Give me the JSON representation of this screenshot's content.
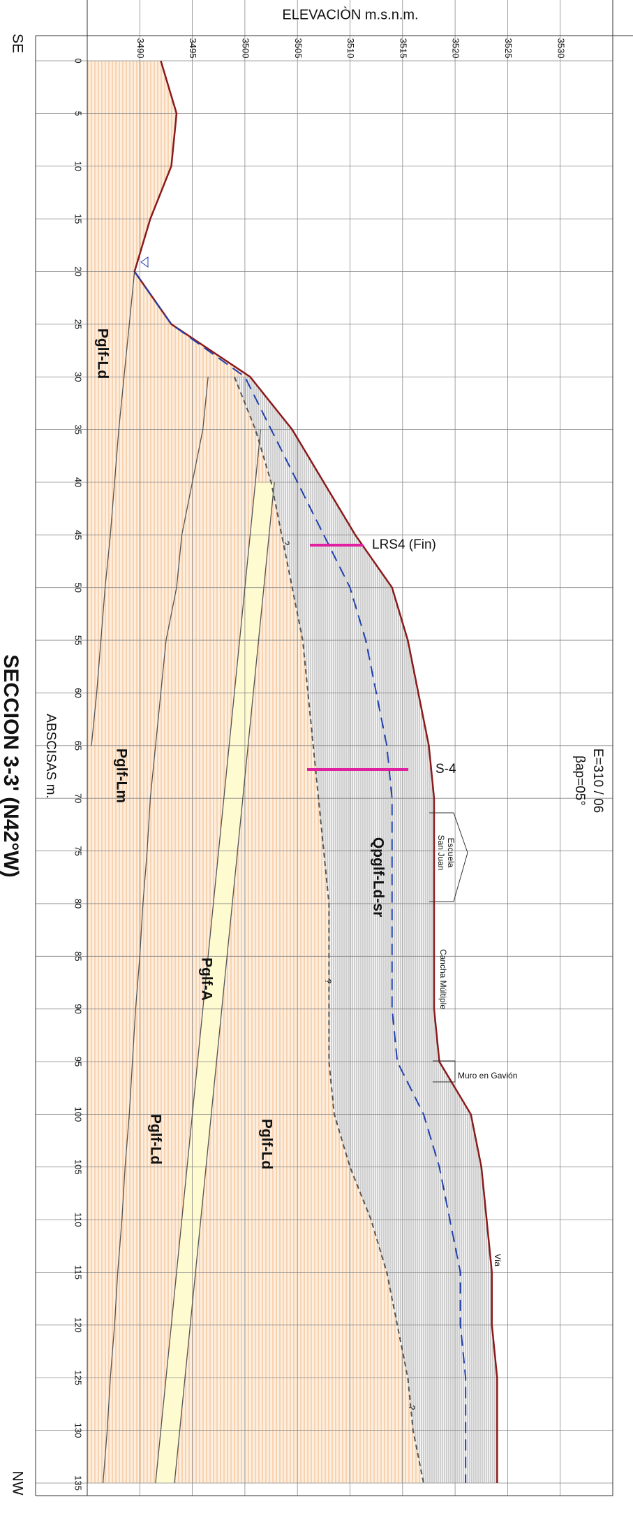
{
  "chart_data": {
    "type": "line",
    "title": "SECCION 3-3' (N42°W)",
    "x_label": "ABSCISAS m.",
    "y_label": "ELEVACIÒN m.s.n.m.",
    "x": [
      0,
      5,
      10,
      15,
      20,
      25,
      30,
      35,
      40,
      45,
      50,
      55,
      60,
      65,
      70,
      75,
      80,
      85,
      90,
      95,
      100,
      105,
      110,
      115,
      120,
      125,
      130,
      135
    ],
    "xlim": [
      0,
      135
    ],
    "xticks": [
      0,
      5,
      10,
      15,
      20,
      25,
      30,
      35,
      40,
      45,
      50,
      55,
      60,
      65,
      70,
      75,
      80,
      85,
      90,
      95,
      100,
      105,
      110,
      115,
      120,
      125,
      130,
      135
    ],
    "ylim": [
      3485,
      3535
    ],
    "yticks": [
      3490,
      3495,
      3500,
      3505,
      3510,
      3515,
      3520,
      3525,
      3530
    ],
    "grid": true,
    "series": [
      {
        "color": "#8b1a1a",
        "dashed": false,
        "values": [
          3492,
          3493.5,
          3493,
          3491,
          3489.5,
          3493,
          3500.5,
          3504.5,
          3507.5,
          3510.5,
          3514,
          3515.5,
          3516.5,
          3517.5,
          3518,
          3518,
          3518,
          3518,
          3518,
          3518.5,
          3521.5,
          3522.5,
          3523,
          3523.5,
          3523.5,
          3524,
          3524,
          3524
        ]
      },
      {
        "color": "#1f3fb0",
        "dashed": true,
        "values": [
          null,
          null,
          null,
          null,
          3489.5,
          3493,
          3500,
          3502.5,
          3505,
          3507.5,
          3510,
          3511.5,
          3512.5,
          3513.5,
          3514,
          3514,
          3514,
          3514,
          3514,
          3514.5,
          3517,
          3518.5,
          3519.5,
          3520.5,
          3520.5,
          3521,
          3521,
          3521
        ]
      },
      {
        "color": "#555555",
        "dashed": true,
        "values": [
          null,
          null,
          null,
          null,
          null,
          null,
          3499,
          3501,
          3502.5,
          3503.5,
          3504.5,
          3505.5,
          3506,
          3506.5,
          3507,
          3507.5,
          3508,
          3508,
          3508,
          3508,
          3508.5,
          3510,
          3512,
          3513.5,
          3514.5,
          3515.5,
          3516,
          3517
        ]
      },
      {
        "color": "#555555",
        "dashed": false,
        "values": [
          null,
          null,
          null,
          null,
          3489.5,
          3489,
          3488.5,
          3488,
          3487.6,
          3487.2,
          3486.7,
          3486.3,
          3485.9,
          3485.4,
          null,
          null,
          null,
          null,
          null,
          null,
          null,
          null,
          null,
          null,
          null,
          null,
          null,
          null
        ]
      },
      {
        "color": "#555555",
        "dashed": false,
        "values": [
          null,
          null,
          null,
          null,
          null,
          null,
          3496.5,
          3496,
          3495,
          3494,
          3493.5,
          3492.5,
          3492,
          3491.5,
          3491,
          3490.7,
          3490.3,
          3490,
          3489.6,
          3489.3,
          3489,
          3488.6,
          3488.3,
          3487.9,
          3487.6,
          3487.2,
          3486.9,
          3486.5
        ]
      },
      {
        "color": "#555555",
        "dashed": false,
        "values": [
          null,
          null,
          null,
          null,
          null,
          null,
          null,
          3501.5,
          3501,
          3500.5,
          3500,
          3499.5,
          3499,
          3498.5,
          3498,
          3497.5,
          3497,
          3496.5,
          3496,
          3495.5,
          3495,
          3494.5,
          3494,
          3493.5,
          3493,
          3492.5,
          3492,
          3491.5
        ]
      },
      {
        "color": "#555555",
        "dashed": false,
        "values": [
          null,
          null,
          null,
          null,
          null,
          null,
          null,
          null,
          3502.8,
          3502.3,
          3501.8,
          3501.3,
          3500.8,
          3500.3,
          3499.8,
          3499.3,
          3498.8,
          3498.3,
          3497.8,
          3497.3,
          3496.8,
          3496.3,
          3495.8,
          3495.3,
          3494.8,
          3494.3,
          3493.8,
          3493.3
        ]
      }
    ],
    "annotations": [
      "SE",
      "NW",
      "E=310 / 06",
      "βap=05°",
      "Pglf-Ld",
      "Pglf-Lm",
      "Qpglf-Ld-sr",
      "Pglf-A",
      "Pglf-Ld",
      "Pglf-Ld",
      "LRS4 (Fin)",
      "S-4",
      "Escuela",
      "San Juan",
      "Cancha Múltiple",
      "Muro en Gavión",
      "Vía",
      "?",
      "?",
      "?"
    ]
  }
}
